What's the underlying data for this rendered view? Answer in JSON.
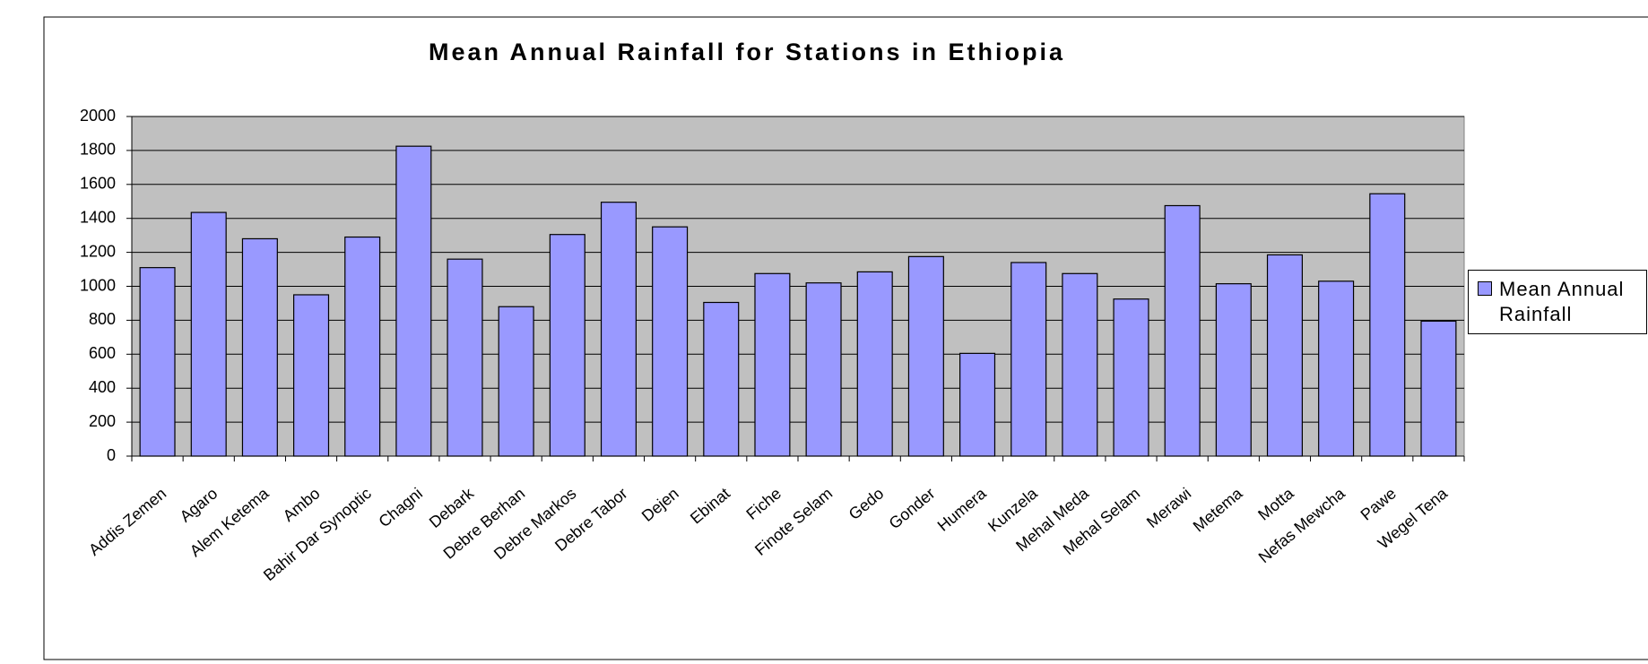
{
  "chart_data": {
    "type": "bar",
    "title": "Mean Annual Rainfall for Stations in Ethiopia",
    "categories": [
      "Addis Zemen",
      "Agaro",
      "Alem Ketema",
      "Ambo",
      "Bahir Dar Synoptic",
      "Chagni",
      "Debark",
      "Debre Berhan",
      "Debre Markos",
      "Debre Tabor",
      "Dejen",
      "Ebinat",
      "Fiche",
      "Finote Selam",
      "Gedo",
      "Gonder",
      "Humera",
      "Kunzela",
      "Mehal Meda",
      "Mehal Selam",
      "Merawi",
      "Metema",
      "Motta",
      "Nefas Mewcha",
      "Pawe",
      "Wegel Tena"
    ],
    "series": [
      {
        "name": "Mean Annual Rainfall",
        "color": "#9999ff",
        "values": [
          1110,
          1435,
          1280,
          950,
          1290,
          1825,
          1160,
          880,
          1305,
          1495,
          1350,
          905,
          1075,
          1020,
          1085,
          1175,
          605,
          1140,
          1075,
          925,
          1475,
          1015,
          1185,
          1030,
          1545,
          795
        ]
      }
    ],
    "ylim": [
      0,
      2000
    ],
    "yticks": [
      0,
      200,
      400,
      600,
      800,
      1000,
      1200,
      1400,
      1600,
      1800,
      2000
    ],
    "grid": true,
    "legend": "right"
  }
}
